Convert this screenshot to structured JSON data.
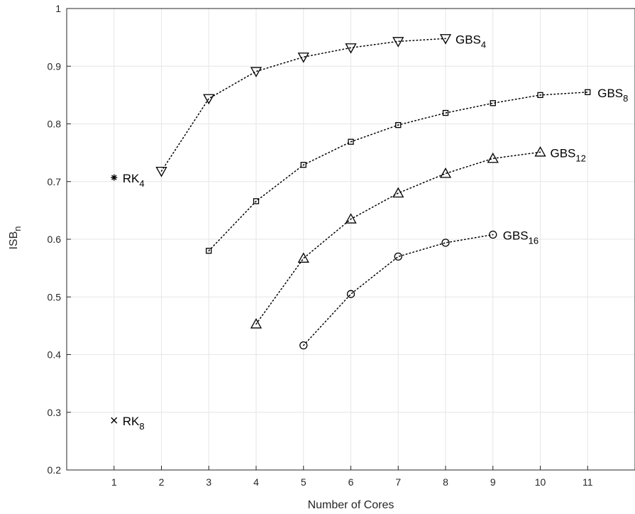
{
  "chart_data": {
    "type": "line",
    "xlabel": "Number of Cores",
    "ylabel_main": "ISB",
    "ylabel_sub": "n",
    "xlim": [
      0,
      12
    ],
    "ylim": [
      0.2,
      1.0
    ],
    "xticks": [
      "1",
      "2",
      "3",
      "4",
      "5",
      "6",
      "7",
      "8",
      "9",
      "10",
      "11"
    ],
    "yticks": [
      "0.2",
      "0.3",
      "0.4",
      "0.5",
      "0.6",
      "0.7",
      "0.8",
      "0.9",
      "1"
    ],
    "grid": true,
    "series": [
      {
        "name_main": "GBS",
        "name_sub": "4",
        "marker": "triangle-down",
        "x": [
          2,
          3,
          4,
          5,
          6,
          7,
          8
        ],
        "y": [
          0.718,
          0.844,
          0.891,
          0.916,
          0.932,
          0.943,
          0.948
        ]
      },
      {
        "name_main": "GBS",
        "name_sub": "8",
        "marker": "square",
        "x": [
          3,
          4,
          5,
          6,
          7,
          8,
          9,
          10,
          11
        ],
        "y": [
          0.58,
          0.666,
          0.729,
          0.769,
          0.798,
          0.819,
          0.836,
          0.85,
          0.855
        ]
      },
      {
        "name_main": "GBS",
        "name_sub": "12",
        "marker": "triangle-up",
        "x": [
          4,
          5,
          6,
          7,
          8,
          9,
          10
        ],
        "y": [
          0.453,
          0.567,
          0.635,
          0.68,
          0.714,
          0.74,
          0.751
        ]
      },
      {
        "name_main": "GBS",
        "name_sub": "16",
        "marker": "circle",
        "x": [
          5,
          6,
          7,
          8,
          9
        ],
        "y": [
          0.416,
          0.505,
          0.57,
          0.594,
          0.608
        ]
      },
      {
        "name_main": "RK",
        "name_sub": "4",
        "marker": "asterisk",
        "x": [
          1
        ],
        "y": [
          0.707
        ]
      },
      {
        "name_main": "RK",
        "name_sub": "8",
        "marker": "x",
        "x": [
          1
        ],
        "y": [
          0.286
        ]
      }
    ]
  }
}
